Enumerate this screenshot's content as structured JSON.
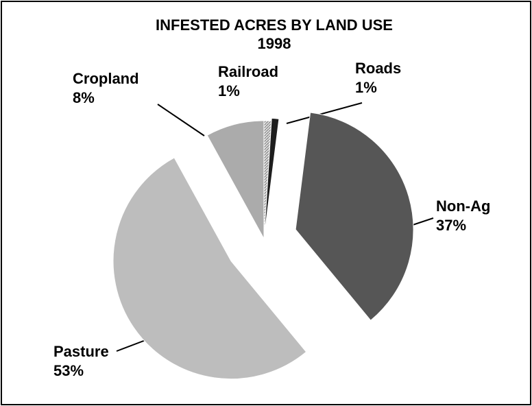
{
  "chart_data": {
    "type": "pie",
    "title": "INFESTED ACRES BY LAND USE",
    "subtitle": "1998",
    "categories": [
      "Railroad",
      "Roads",
      "Non-Ag",
      "Pasture",
      "Cropland"
    ],
    "values": [
      1,
      1,
      37,
      53,
      8
    ],
    "value_labels": [
      "1%",
      "1%",
      "37%",
      "53%",
      "8%"
    ],
    "colors": [
      "#c8c8c8",
      "#1e1e1e",
      "#565656",
      "#bdbdbd",
      "#ababab"
    ]
  }
}
